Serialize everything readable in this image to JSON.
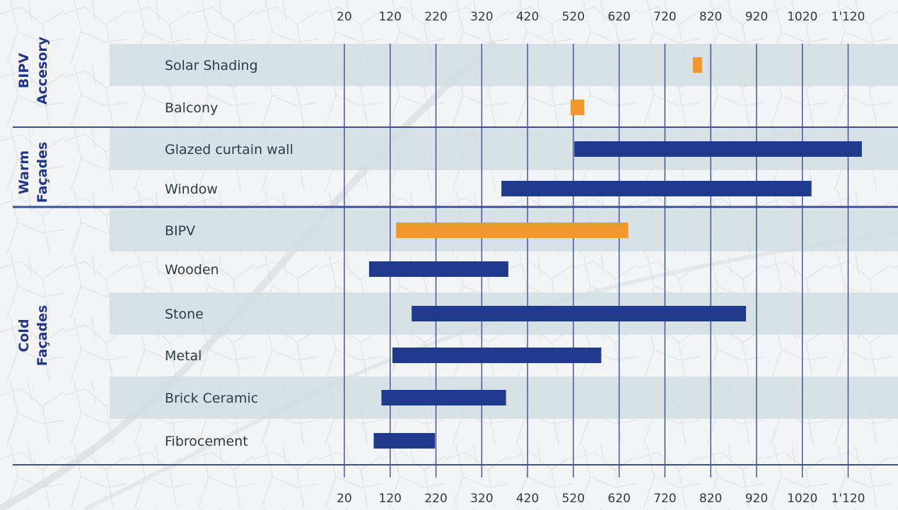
{
  "chart_data": {
    "type": "bar",
    "orientation": "horizontal-range",
    "title": "",
    "xlabel": "",
    "ylabel": "",
    "xlim": [
      20,
      1170
    ],
    "x_ticks": [
      20,
      120,
      220,
      320,
      420,
      520,
      620,
      720,
      820,
      920,
      1020,
      1120
    ],
    "x_tick_labels": [
      "20",
      "120",
      "220",
      "320",
      "420",
      "520",
      "620",
      "720",
      "820",
      "920",
      "1020",
      "1'120"
    ],
    "x_axis_positions": [
      "top",
      "bottom"
    ],
    "grid": true,
    "colors": {
      "bipv": "#f0962a",
      "standard": "#1f3a8a",
      "band": "#d2dde2",
      "grid": "#3a4f96"
    },
    "groups": [
      {
        "name_lines": [
          "BIPV",
          "Accesory"
        ],
        "categories": [
          "Solar Shading",
          "Balcony"
        ]
      },
      {
        "name_lines": [
          "Warm",
          "Façades"
        ],
        "categories": [
          "Glazed curtain wall",
          "Window"
        ]
      },
      {
        "name_lines": [
          "Cold",
          "Façades"
        ],
        "categories": [
          "BIPV",
          "Wooden",
          "Stone",
          "Metal",
          "Brick Ceramic",
          "Fibrocement"
        ]
      }
    ],
    "bars": [
      {
        "category": "Solar Shading",
        "min": 781,
        "max": 801,
        "color_key": "bipv"
      },
      {
        "category": "Balcony",
        "min": 514,
        "max": 544,
        "color_key": "bipv"
      },
      {
        "category": "Glazed curtain wall",
        "min": 522,
        "max": 1150,
        "color_key": "standard"
      },
      {
        "category": "Window",
        "min": 363,
        "max": 1040,
        "color_key": "standard"
      },
      {
        "category": "BIPV",
        "min": 133,
        "max": 640,
        "color_key": "bipv"
      },
      {
        "category": "Wooden",
        "min": 74,
        "max": 378,
        "color_key": "standard"
      },
      {
        "category": "Stone",
        "min": 167,
        "max": 897,
        "color_key": "standard"
      },
      {
        "category": "Metal",
        "min": 125,
        "max": 581,
        "color_key": "standard"
      },
      {
        "category": "Brick Ceramic",
        "min": 101,
        "max": 373,
        "color_key": "standard"
      },
      {
        "category": "Fibrocement",
        "min": 84,
        "max": 218,
        "color_key": "standard"
      }
    ]
  }
}
